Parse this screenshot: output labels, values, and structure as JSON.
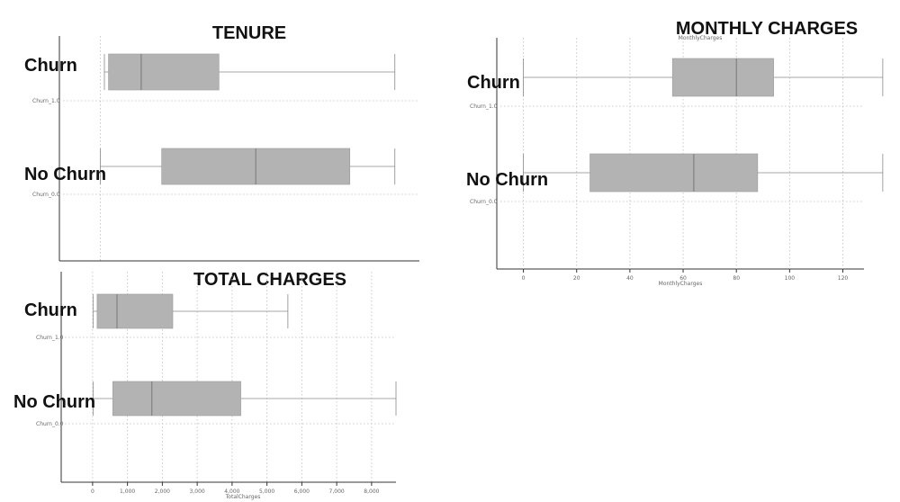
{
  "chart_data": [
    {
      "type": "boxplot",
      "title": "TENURE",
      "axis_title_small": "",
      "xlabel": "",
      "xlim": [
        -10,
        78
      ],
      "xticks": [],
      "series": [
        {
          "name": "Churn",
          "category": "Churn_1.0",
          "whisker_low": 1,
          "q1": 2,
          "median": 10,
          "q3": 29,
          "whisker_high": 72
        },
        {
          "name": "No Churn",
          "category": "Churn_0.0",
          "whisker_low": 0,
          "q1": 15,
          "median": 38,
          "q3": 61,
          "whisker_high": 72
        }
      ]
    },
    {
      "type": "boxplot",
      "title": "MONTHLY CHARGES",
      "axis_title_small": "MonthlyCharges",
      "xlabel": "MonthlyCharges",
      "xlim": [
        -10,
        132
      ],
      "xticks": [
        0,
        20,
        40,
        60,
        80,
        100,
        120
      ],
      "series": [
        {
          "name": "Churn",
          "category": "Churn_1.0",
          "whisker_low": 0,
          "q1": 56,
          "median": 80,
          "q3": 94,
          "whisker_high": 135
        },
        {
          "name": "No Churn",
          "category": "Churn_0.0",
          "whisker_low": 0,
          "q1": 25,
          "median": 64,
          "q3": 88,
          "whisker_high": 135
        }
      ]
    },
    {
      "type": "boxplot",
      "title": "TOTAL CHARGES",
      "axis_title_small": "",
      "xlabel": "TotalCharges",
      "xlim": [
        -900,
        8700
      ],
      "xticks": [
        0,
        1000,
        2000,
        3000,
        4000,
        5000,
        6000,
        7000,
        8000
      ],
      "xtick_labels": [
        "0",
        "1,000",
        "2,000",
        "3,000",
        "4,000",
        "5,000",
        "6,000",
        "7,000",
        "8,000"
      ],
      "series": [
        {
          "name": "Churn",
          "category": "Churn_1.0",
          "whisker_low": 20,
          "q1": 130,
          "median": 700,
          "q3": 2300,
          "whisker_high": 5600
        },
        {
          "name": "No Churn",
          "category": "Churn_0.0",
          "whisker_low": 20,
          "q1": 580,
          "median": 1700,
          "q3": 4250,
          "whisker_high": 8700
        }
      ]
    }
  ]
}
